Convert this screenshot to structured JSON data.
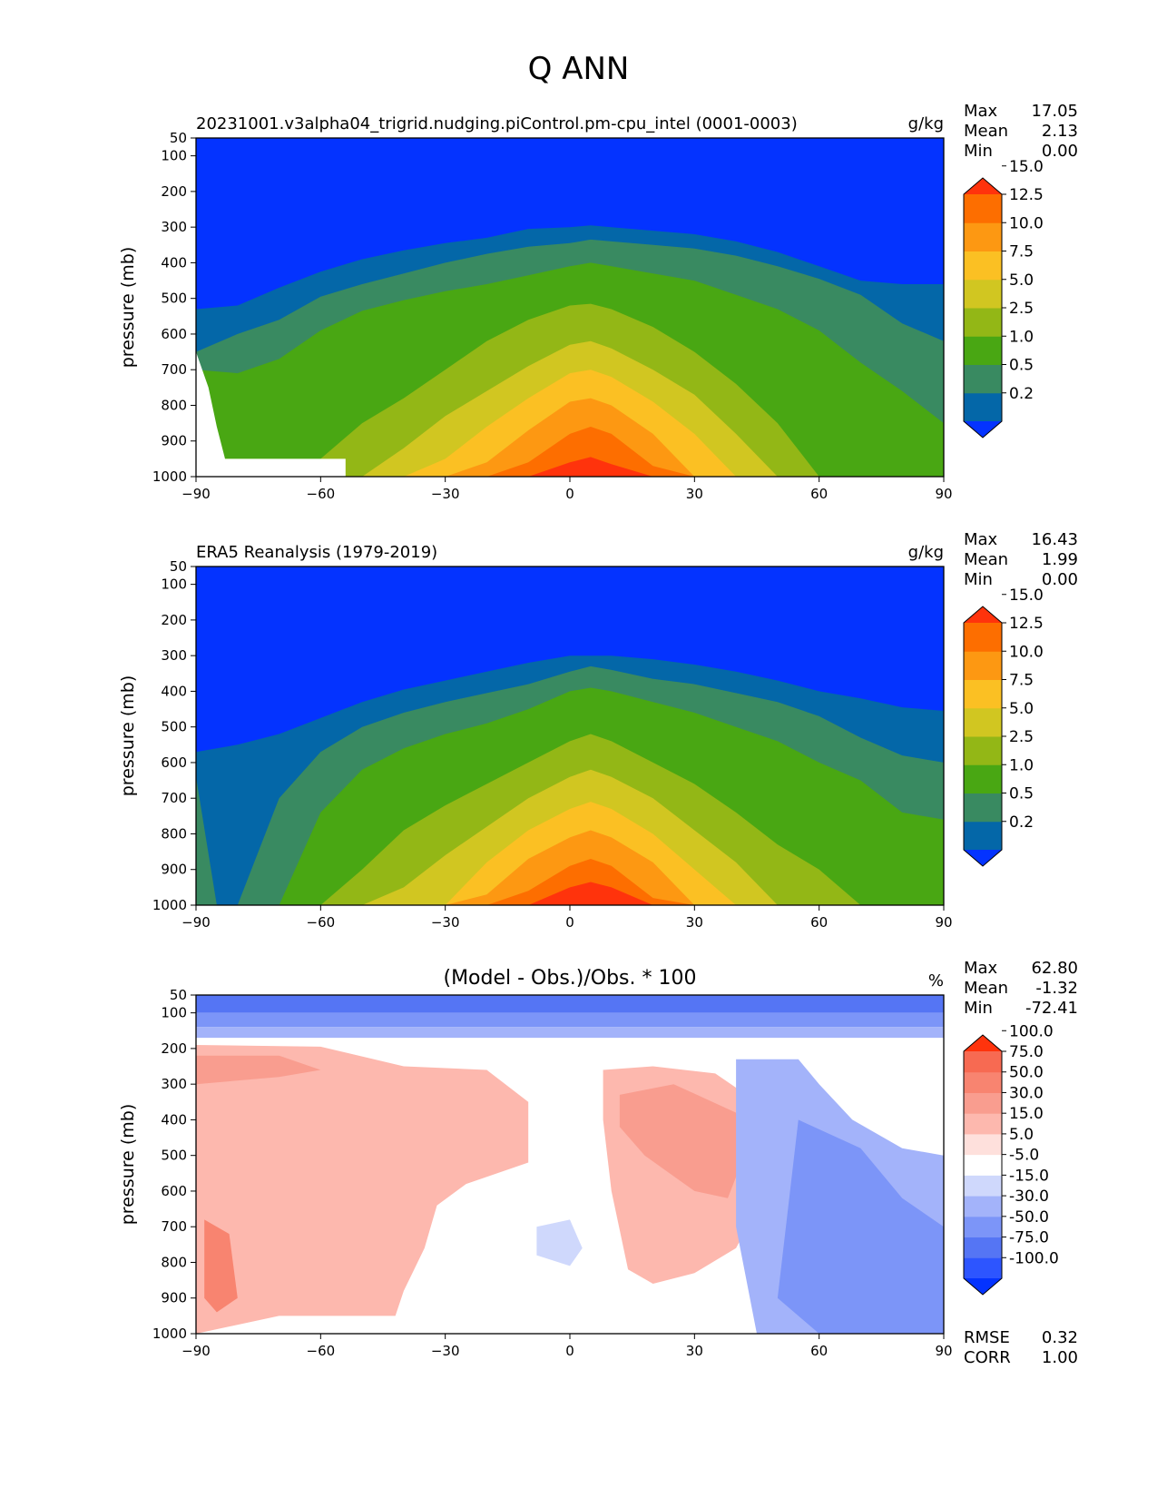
{
  "page": {
    "title": "Q ANN"
  },
  "axis_common": {
    "ylabel": "pressure (mb)",
    "yticks": [
      50,
      100,
      200,
      300,
      400,
      500,
      600,
      700,
      800,
      900,
      1000
    ],
    "xticks": [
      -90,
      -60,
      -30,
      0,
      30,
      60,
      90
    ],
    "ylim": [
      50,
      1000
    ],
    "xlim": [
      -90,
      90
    ]
  },
  "chart_data": [
    {
      "type": "heatmap",
      "panel": "test",
      "title": "20231001.v3alpha04_trigrid.nudging.piControl.pm-cpu_intel (0001-0003)",
      "units": "g/kg",
      "stats": [
        {
          "label": "Max",
          "value": "17.05"
        },
        {
          "label": "Mean",
          "value": "2.13"
        },
        {
          "label": "Min",
          "value": "0.00"
        }
      ],
      "colorbar": {
        "colors": [
          "#0433ff",
          "#0467a8",
          "#398a61",
          "#49a713",
          "#93b716",
          "#d1c621",
          "#fbc023",
          "#fd9812",
          "#fd6e00",
          "#ff330c"
        ],
        "tick_labels": [
          "0.2",
          "0.5",
          "1.0",
          "2.5",
          "5.0",
          "7.5",
          "10.0",
          "12.5",
          "15.0"
        ],
        "extend": "both"
      },
      "contour_boundaries": {
        "levels": [
          0.2,
          0.5,
          1.0,
          2.5,
          5.0,
          7.5,
          10.0,
          12.5,
          15.0
        ],
        "lat": [
          -90,
          -80,
          -70,
          -60,
          -50,
          -40,
          -30,
          -20,
          -10,
          0,
          5,
          10,
          20,
          30,
          40,
          50,
          60,
          70,
          80,
          90
        ],
        "pressure": [
          [
            530,
            520,
            470,
            425,
            390,
            365,
            345,
            330,
            305,
            300,
            295,
            300,
            310,
            320,
            340,
            370,
            410,
            450,
            460,
            460
          ],
          [
            650,
            600,
            560,
            495,
            460,
            430,
            400,
            375,
            355,
            345,
            335,
            340,
            350,
            360,
            380,
            410,
            445,
            490,
            570,
            620
          ],
          [
            700,
            710,
            670,
            590,
            535,
            505,
            480,
            460,
            435,
            410,
            400,
            410,
            430,
            450,
            490,
            530,
            590,
            680,
            760,
            850
          ],
          [
            950,
            950,
            950,
            950,
            850,
            780,
            700,
            620,
            560,
            520,
            515,
            530,
            580,
            650,
            740,
            850,
            1000,
            1000,
            1000,
            1000
          ],
          [
            1000,
            1000,
            1000,
            1000,
            1000,
            920,
            830,
            760,
            690,
            630,
            620,
            640,
            700,
            770,
            880,
            1000,
            1000,
            1000,
            1000,
            1000
          ],
          [
            1000,
            1000,
            1000,
            1000,
            1000,
            1000,
            950,
            860,
            780,
            710,
            700,
            720,
            790,
            880,
            1000,
            1000,
            1000,
            1000,
            1000,
            1000
          ],
          [
            1000,
            1000,
            1000,
            1000,
            1000,
            1000,
            1000,
            960,
            870,
            790,
            780,
            800,
            880,
            1000,
            1000,
            1000,
            1000,
            1000,
            1000,
            1000
          ],
          [
            1000,
            1000,
            1000,
            1000,
            1000,
            1000,
            1000,
            1000,
            960,
            880,
            860,
            880,
            970,
            1000,
            1000,
            1000,
            1000,
            1000,
            1000,
            1000
          ],
          [
            1000,
            1000,
            1000,
            1000,
            1000,
            1000,
            1000,
            1000,
            1000,
            960,
            945,
            965,
            1000,
            1000,
            1000,
            1000,
            1000,
            1000,
            1000,
            1000
          ]
        ]
      },
      "missing_region": {
        "lat": [
          -90,
          -87,
          -85,
          -83,
          -80,
          -70,
          -60,
          -54,
          -54,
          -90
        ],
        "pressure": [
          650,
          750,
          860,
          950,
          950,
          950,
          950,
          950,
          1000,
          1000
        ]
      }
    },
    {
      "type": "heatmap",
      "panel": "reference",
      "title": "ERA5 Reanalysis (1979-2019)",
      "units": "g/kg",
      "stats": [
        {
          "label": "Max",
          "value": "16.43"
        },
        {
          "label": "Mean",
          "value": "1.99"
        },
        {
          "label": "Min",
          "value": "0.00"
        }
      ],
      "colorbar": {
        "colors": [
          "#0433ff",
          "#0467a8",
          "#398a61",
          "#49a713",
          "#93b716",
          "#d1c621",
          "#fbc023",
          "#fd9812",
          "#fd6e00",
          "#ff330c"
        ],
        "tick_labels": [
          "0.2",
          "0.5",
          "1.0",
          "2.5",
          "5.0",
          "7.5",
          "10.0",
          "12.5",
          "15.0"
        ],
        "extend": "both"
      },
      "contour_boundaries": {
        "levels": [
          0.2,
          0.5,
          1.0,
          2.5,
          5.0,
          7.5,
          10.0,
          12.5,
          15.0
        ],
        "lat": [
          -90,
          -85,
          -80,
          -70,
          -60,
          -50,
          -40,
          -30,
          -20,
          -10,
          0,
          5,
          10,
          20,
          30,
          40,
          50,
          60,
          70,
          80,
          90
        ],
        "pressure": [
          [
            570,
            560,
            550,
            520,
            475,
            430,
            395,
            370,
            345,
            320,
            300,
            300,
            300,
            310,
            325,
            345,
            370,
            400,
            420,
            445,
            455
          ],
          [
            640,
            1000,
            1000,
            700,
            570,
            500,
            460,
            430,
            405,
            380,
            345,
            330,
            340,
            365,
            380,
            405,
            430,
            470,
            530,
            580,
            600
          ],
          [
            1000,
            1000,
            1000,
            1000,
            740,
            620,
            560,
            520,
            490,
            450,
            400,
            390,
            400,
            430,
            460,
            500,
            540,
            600,
            650,
            740,
            760
          ],
          [
            1000,
            1000,
            1000,
            1000,
            1000,
            900,
            790,
            720,
            660,
            600,
            540,
            520,
            540,
            600,
            660,
            740,
            830,
            900,
            1000,
            1000,
            1000
          ],
          [
            1000,
            1000,
            1000,
            1000,
            1000,
            1000,
            950,
            860,
            780,
            700,
            640,
            620,
            640,
            700,
            790,
            880,
            1000,
            1000,
            1000,
            1000,
            1000
          ],
          [
            1000,
            1000,
            1000,
            1000,
            1000,
            1000,
            1000,
            1000,
            880,
            790,
            730,
            710,
            730,
            800,
            900,
            1000,
            1000,
            1000,
            1000,
            1000,
            1000
          ],
          [
            1000,
            1000,
            1000,
            1000,
            1000,
            1000,
            1000,
            1000,
            970,
            870,
            810,
            790,
            810,
            880,
            1000,
            1000,
            1000,
            1000,
            1000,
            1000,
            1000
          ],
          [
            1000,
            1000,
            1000,
            1000,
            1000,
            1000,
            1000,
            1000,
            1000,
            960,
            890,
            870,
            890,
            980,
            1000,
            1000,
            1000,
            1000,
            1000,
            1000,
            1000
          ],
          [
            1000,
            1000,
            1000,
            1000,
            1000,
            1000,
            1000,
            1000,
            1000,
            1000,
            950,
            935,
            950,
            1000,
            1000,
            1000,
            1000,
            1000,
            1000,
            1000,
            1000
          ]
        ]
      }
    },
    {
      "type": "heatmap",
      "panel": "difference",
      "title": "(Model - Obs.)/Obs. * 100",
      "units": "%",
      "stats": [
        {
          "label": "Max",
          "value": "62.80"
        },
        {
          "label": "Mean",
          "value": "-1.32"
        },
        {
          "label": "Min",
          "value": "-72.41"
        }
      ],
      "extra_stats": [
        {
          "label": "RMSE",
          "value": "0.32"
        },
        {
          "label": "CORR",
          "value": "1.00"
        }
      ],
      "colorbar": {
        "colors": [
          "#0433ff",
          "#2d55ff",
          "#5575f4",
          "#7c95f8",
          "#a3b3fa",
          "#cfd8fc",
          "#ffffff",
          "#fee0dc",
          "#fdb8ae",
          "#f99d8f",
          "#f88470",
          "#f76a52",
          "#ff330c"
        ],
        "tick_labels": [
          "-100.0",
          "-75.0",
          "-50.0",
          "-30.0",
          "-15.0",
          "-5.0",
          "5.0",
          "15.0",
          "30.0",
          "50.0",
          "75.0",
          "100.0"
        ],
        "extend": "both"
      },
      "field_description": {
        "base_value": 0,
        "regions": [
          {
            "value": -60,
            "lat": [
              -90,
              90,
              90,
              -90
            ],
            "pressure": [
              50,
              50,
              100,
              100
            ]
          },
          {
            "value": -40,
            "lat": [
              -90,
              90,
              90,
              -90
            ],
            "pressure": [
              100,
              100,
              140,
              140
            ]
          },
          {
            "value": -20,
            "lat": [
              -90,
              90,
              90,
              -90
            ],
            "pressure": [
              140,
              140,
              170,
              170
            ]
          },
          {
            "value": 20,
            "lat": [
              -90,
              -60,
              -40,
              -20,
              -10,
              -10,
              -25,
              -32,
              -35,
              -40,
              -42,
              -55,
              -70,
              -90
            ],
            "pressure": [
              190,
              195,
              250,
              260,
              350,
              520,
              580,
              640,
              760,
              880,
              950,
              950,
              950,
              1000
            ]
          },
          {
            "value": 20,
            "lat": [
              8,
              20,
              35,
              45,
              48,
              45,
              40,
              30,
              20,
              14,
              10,
              8
            ],
            "pressure": [
              260,
              250,
              270,
              350,
              500,
              650,
              760,
              830,
              860,
              820,
              600,
              400
            ]
          },
          {
            "value": 40,
            "lat": [
              -90,
              -70,
              -60,
              -70,
              -90
            ],
            "pressure": [
              220,
              220,
              260,
              280,
              300
            ]
          },
          {
            "value": 40,
            "lat": [
              12,
              25,
              40,
              42,
              38,
              30,
              18,
              12
            ],
            "pressure": [
              330,
              300,
              380,
              500,
              620,
              600,
              500,
              420
            ]
          },
          {
            "value": 60,
            "lat": [
              -88,
              -82,
              -80,
              -85,
              -88
            ],
            "pressure": [
              680,
              720,
              900,
              940,
              900
            ]
          },
          {
            "value": -20,
            "lat": [
              40,
              55,
              60,
              68,
              80,
              90,
              90,
              85,
              75,
              65,
              55,
              45,
              40
            ],
            "pressure": [
              230,
              230,
              300,
              400,
              480,
              500,
              1000,
              1000,
              1000,
              1000,
              1000,
              1000,
              700
            ]
          },
          {
            "value": -40,
            "lat": [
              55,
              70,
              80,
              90,
              90,
              85,
              75,
              60,
              50
            ],
            "pressure": [
              400,
              480,
              620,
              700,
              1000,
              1000,
              1000,
              1000,
              900
            ]
          },
          {
            "value": -10,
            "lat": [
              -8,
              0,
              3,
              0,
              -8
            ],
            "pressure": [
              700,
              680,
              760,
              810,
              780
            ]
          }
        ]
      }
    }
  ]
}
